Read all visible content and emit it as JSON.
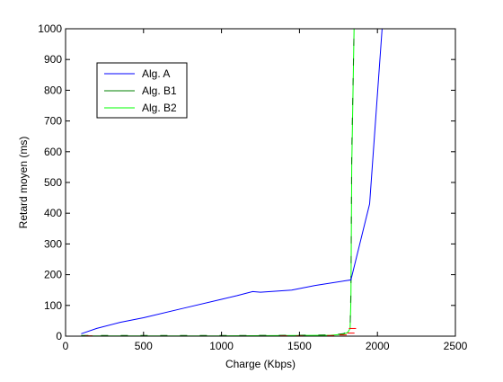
{
  "chart_data": {
    "type": "line",
    "title": "",
    "xlabel": "Charge (Kbps)",
    "ylabel": "Retard moyen (ms)",
    "xlim": [
      0,
      2500
    ],
    "ylim": [
      0,
      1000
    ],
    "xticks": [
      0,
      500,
      1000,
      1500,
      2000,
      2500
    ],
    "yticks": [
      0,
      100,
      200,
      300,
      400,
      500,
      600,
      700,
      800,
      900,
      1000
    ],
    "grid": false,
    "legend_position": "top-left",
    "series": [
      {
        "name": "Alg. A",
        "color": "#0000ff",
        "x": [
          100,
          200,
          350,
          500,
          750,
          1000,
          1100,
          1200,
          1250,
          1450,
          1600,
          1830,
          1950,
          2030
        ],
        "y": [
          8,
          25,
          45,
          60,
          90,
          120,
          132,
          145,
          143,
          150,
          165,
          183,
          430,
          1000
        ]
      },
      {
        "name": "Alg. B1",
        "color": "#008000",
        "dash": "8,14",
        "x": [
          100,
          500,
          1000,
          1500,
          1700,
          1780,
          1810,
          1825,
          1830,
          1835,
          1850
        ],
        "y": [
          2,
          2,
          2,
          3,
          4,
          8,
          15,
          30,
          150,
          600,
          1000
        ]
      },
      {
        "name": "Alg. B2",
        "color": "#00ff00",
        "x": [
          100,
          500,
          1000,
          1500,
          1700,
          1780,
          1810,
          1825,
          1830,
          1835,
          1850
        ],
        "y": [
          1,
          1,
          1,
          2,
          3,
          6,
          12,
          25,
          120,
          550,
          1000
        ]
      }
    ],
    "markers": [
      {
        "color": "#ff0000",
        "x": [
          150,
          1400,
          1500,
          1700,
          1780,
          1830,
          1840
        ],
        "y": [
          1,
          1,
          1,
          2,
          4,
          10,
          25
        ]
      }
    ]
  }
}
